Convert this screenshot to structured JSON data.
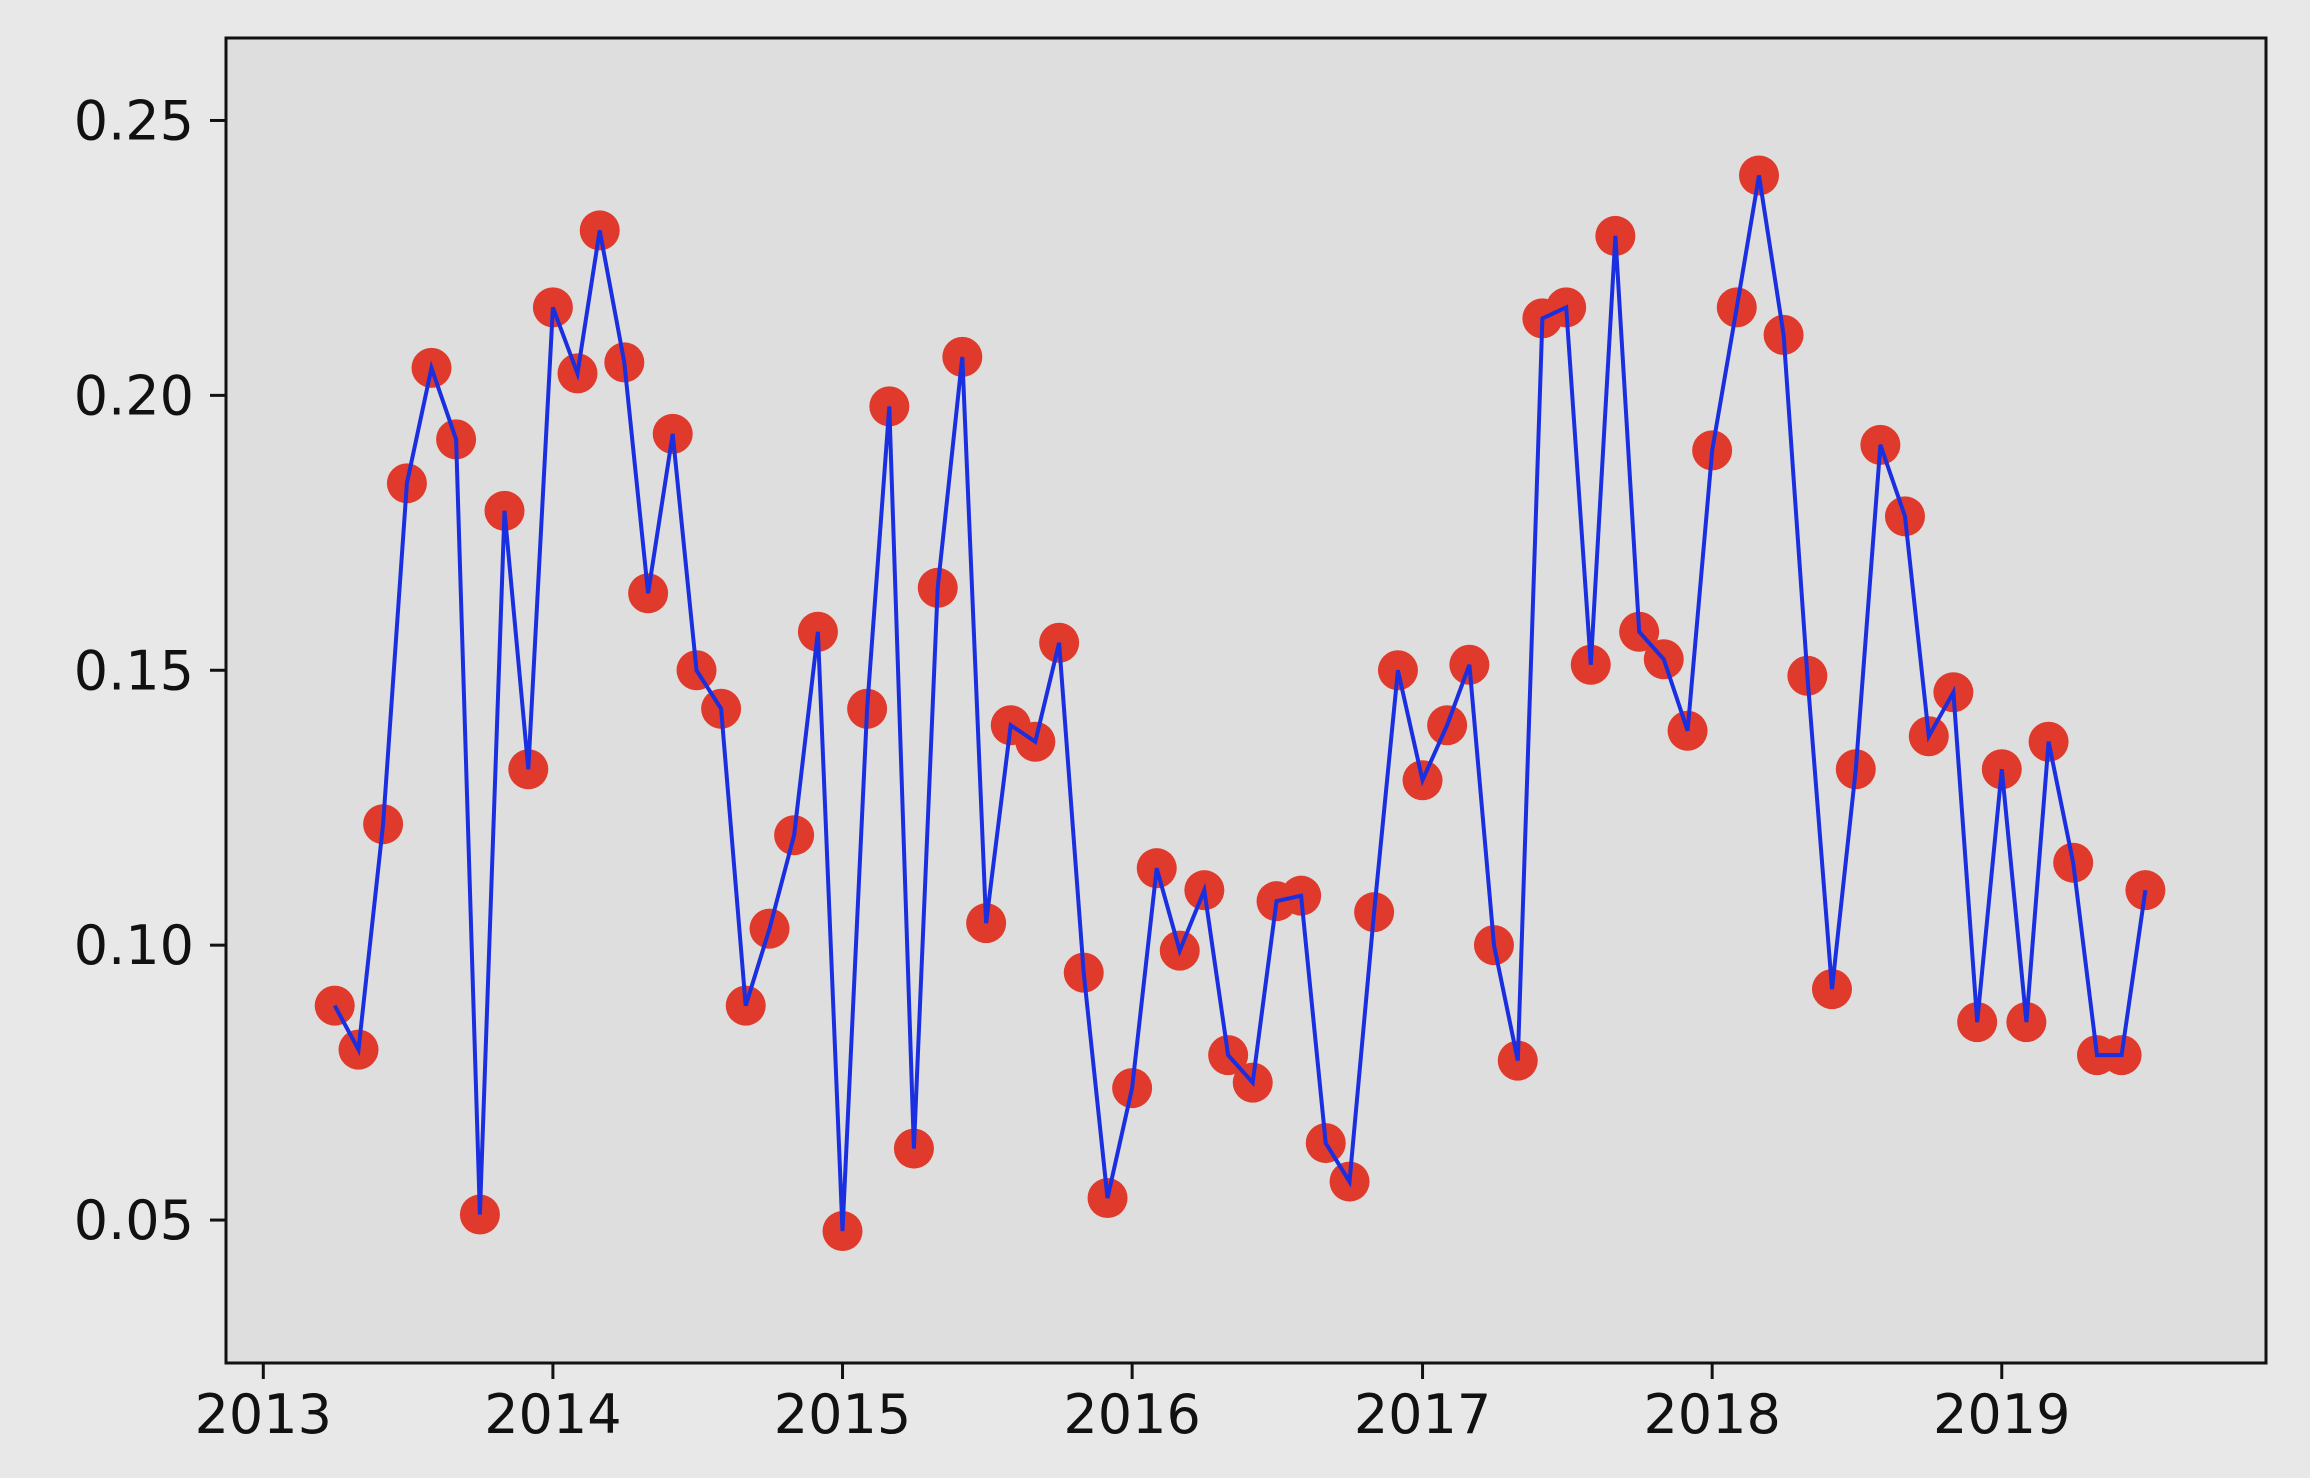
{
  "chart_data": {
    "type": "line",
    "title": "",
    "xlabel": "",
    "ylabel": "",
    "x_ticks": [
      "2013",
      "2014",
      "2015",
      "2016",
      "2017",
      "2018",
      "2019"
    ],
    "y_ticks": [
      "0.05",
      "0.10",
      "0.15",
      "0.20",
      "0.25"
    ],
    "xlim": [
      "2012-11-15",
      "2019-11-30"
    ],
    "ylim": [
      0.024,
      0.265
    ],
    "grid": false,
    "legend": "none",
    "colors": {
      "line": "#1a2fe0",
      "marker": "#e03a2c",
      "axes_bg": "#dedede",
      "page_bg": "#e8e8e8"
    },
    "series": [
      {
        "x": [
          "2013-04",
          "2013-05",
          "2013-06",
          "2013-07",
          "2013-08",
          "2013-09",
          "2013-10",
          "2013-11",
          "2013-12",
          "2014-01",
          "2014-02",
          "2014-03",
          "2014-04",
          "2014-05",
          "2014-06",
          "2014-07",
          "2014-08",
          "2014-09",
          "2014-10",
          "2014-11",
          "2014-12",
          "2015-01",
          "2015-02",
          "2015-03",
          "2015-04",
          "2015-05",
          "2015-06",
          "2015-07",
          "2015-08",
          "2015-09",
          "2015-10",
          "2015-11",
          "2015-12",
          "2016-01",
          "2016-02",
          "2016-03",
          "2016-04",
          "2016-05",
          "2016-06",
          "2016-07",
          "2016-08",
          "2016-09",
          "2016-10",
          "2016-11",
          "2016-12",
          "2017-01",
          "2017-02",
          "2017-03",
          "2017-04",
          "2017-05",
          "2017-06",
          "2017-07",
          "2017-08",
          "2017-09",
          "2017-10",
          "2017-11",
          "2017-12",
          "2018-01",
          "2018-02",
          "2018-03",
          "2018-04",
          "2018-05",
          "2018-06",
          "2018-07",
          "2018-08",
          "2018-09",
          "2018-10",
          "2018-11",
          "2018-12",
          "2019-01",
          "2019-02",
          "2019-03",
          "2019-04",
          "2019-05",
          "2019-06",
          "2019-07"
        ],
        "values": [
          0.089,
          0.081,
          0.122,
          0.184,
          0.205,
          0.192,
          0.051,
          0.179,
          0.132,
          0.216,
          0.204,
          0.23,
          0.206,
          0.164,
          0.193,
          0.15,
          0.143,
          0.089,
          0.103,
          0.12,
          0.157,
          0.048,
          0.143,
          0.198,
          0.063,
          0.165,
          0.207,
          0.104,
          0.14,
          0.137,
          0.155,
          0.095,
          0.054,
          0.074,
          0.114,
          0.099,
          0.11,
          0.08,
          0.075,
          0.108,
          0.109,
          0.064,
          0.057,
          0.106,
          0.15,
          0.13,
          0.14,
          0.151,
          0.1,
          0.079,
          0.214,
          0.216,
          0.151,
          0.229,
          0.157,
          0.152,
          0.139,
          0.19,
          0.216,
          0.24,
          0.211,
          0.149,
          0.092,
          0.132,
          0.191,
          0.178,
          0.138,
          0.146,
          0.086,
          0.132,
          0.086,
          0.137,
          0.115,
          0.08,
          0.08,
          0.11
        ]
      }
    ]
  }
}
